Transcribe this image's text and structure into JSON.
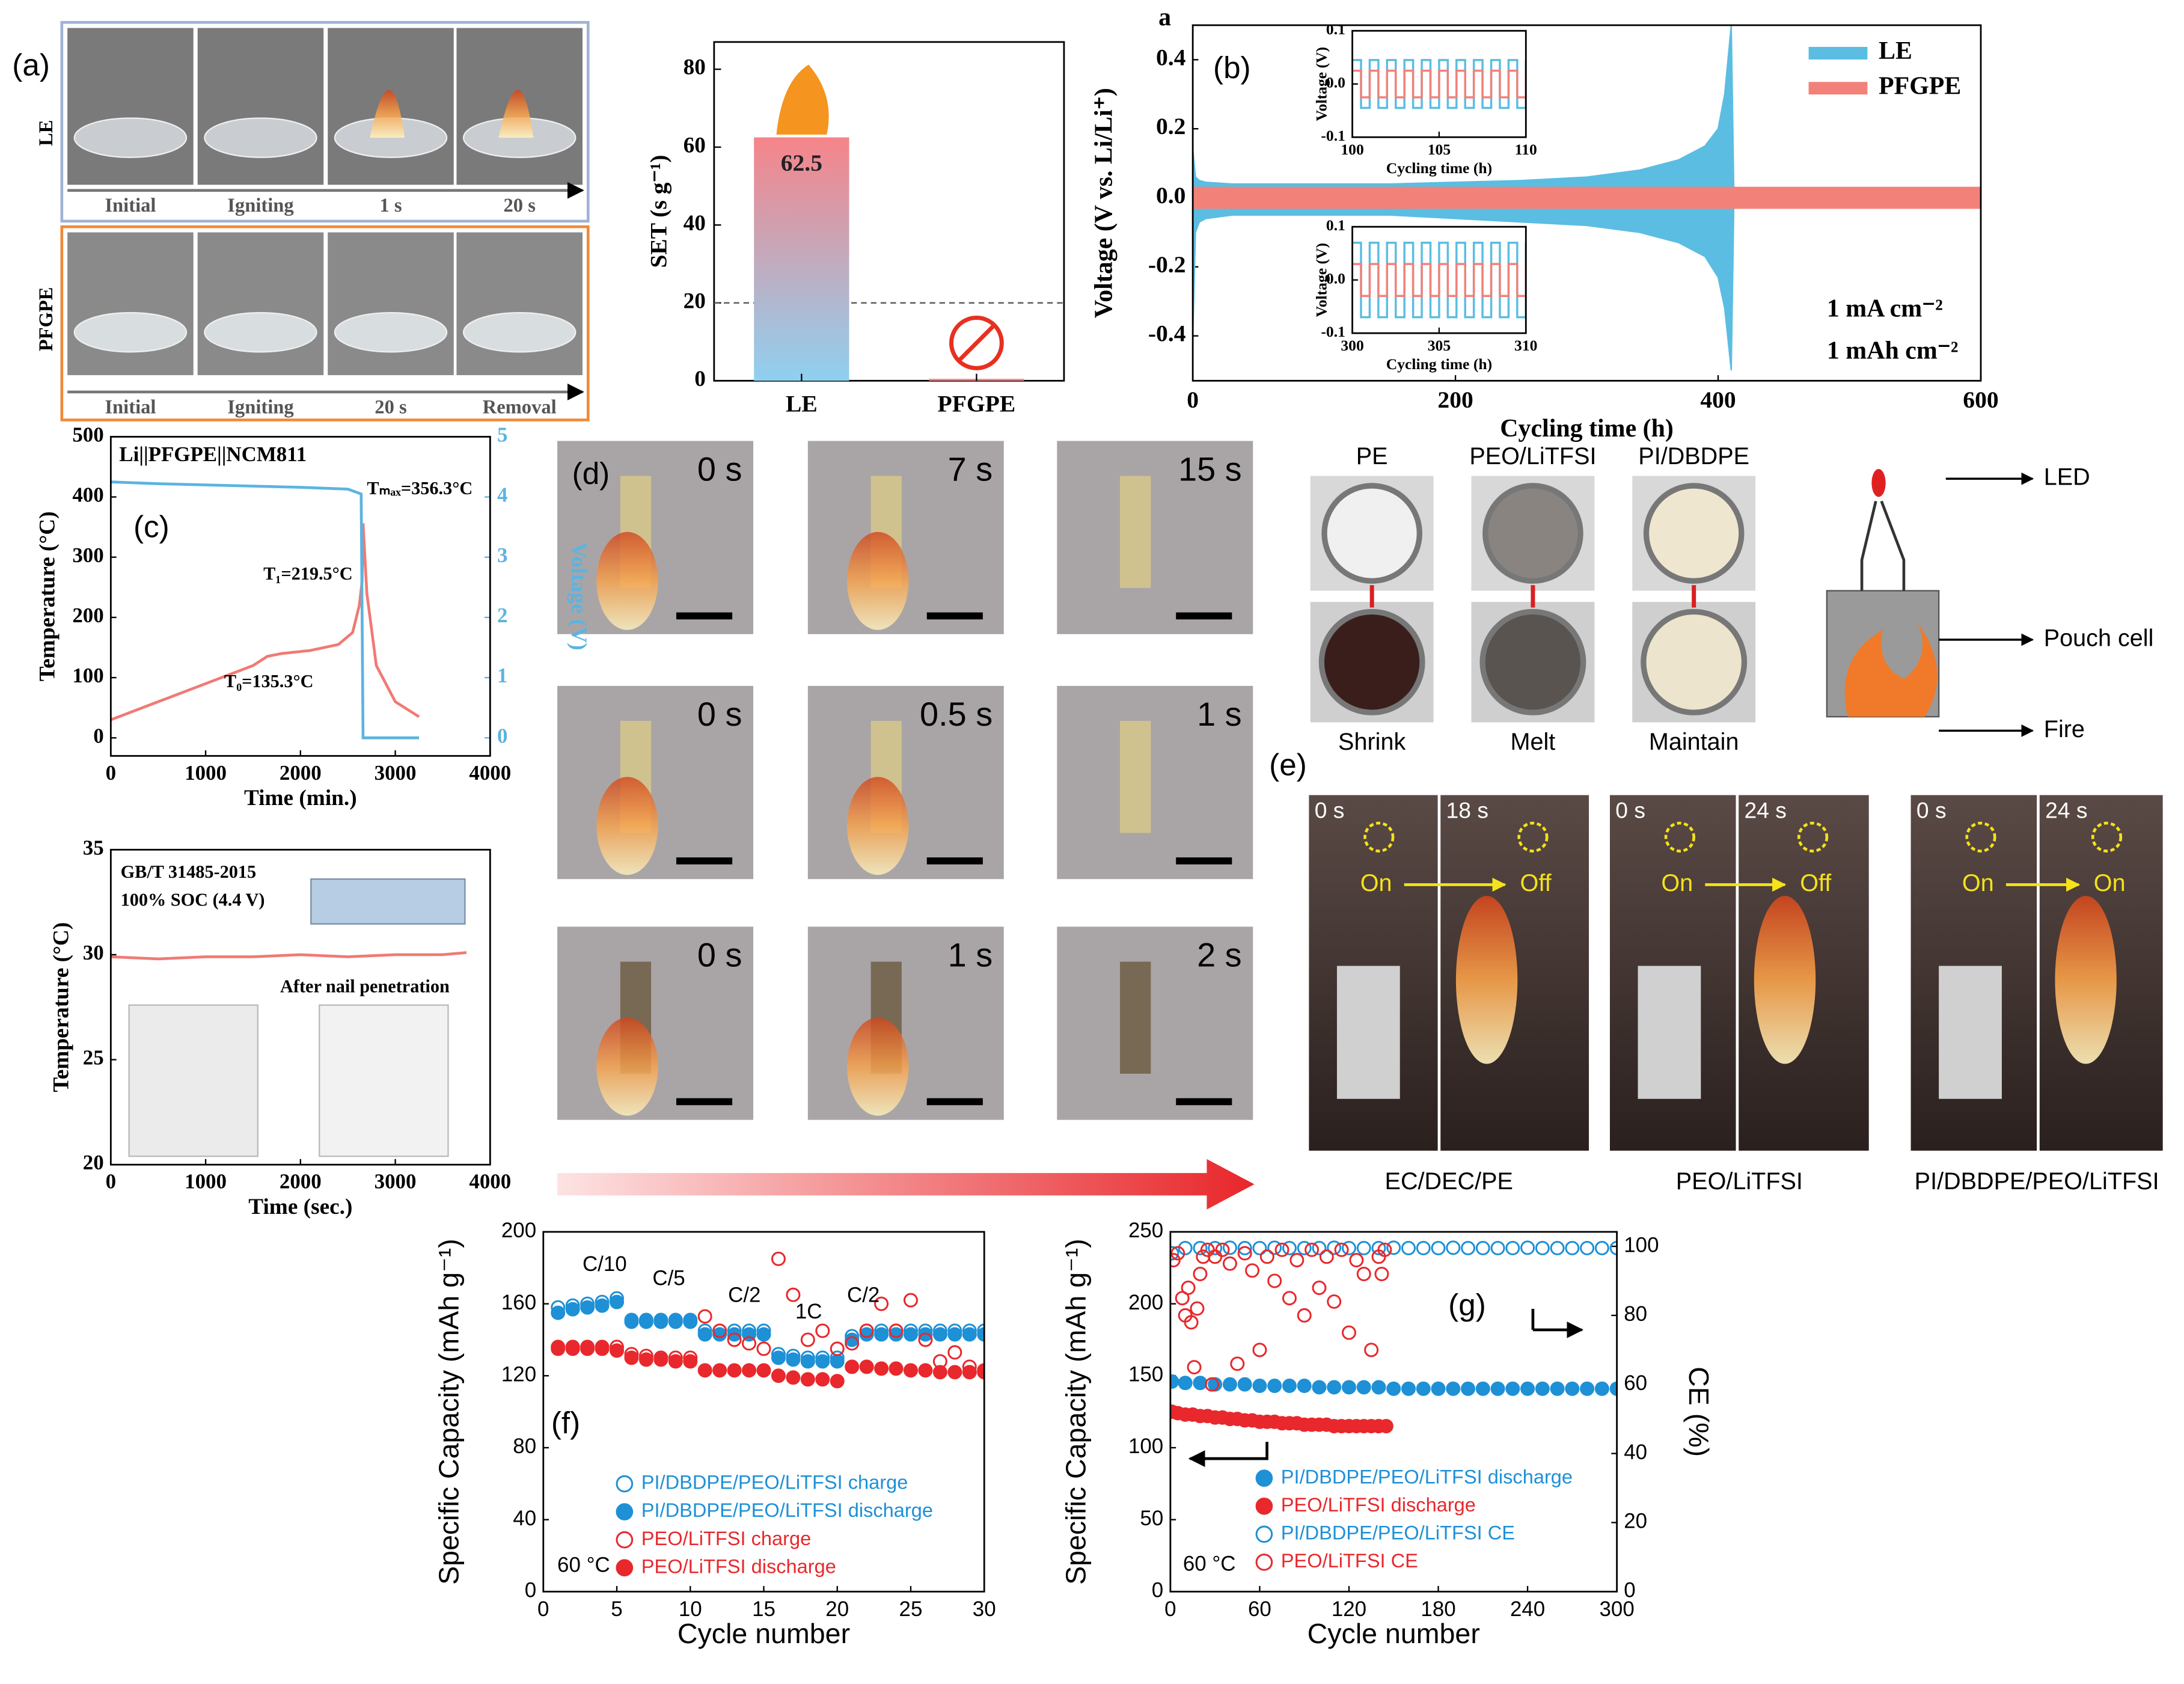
{
  "chart_data": [
    {
      "type": "bar",
      "ylabel": "SET (s g⁻¹)",
      "categories": [
        "LE",
        "PFGPE"
      ],
      "values": [
        62.5,
        0.5
      ],
      "threshold": 20,
      "ylim": [
        0,
        87
      ],
      "yticks": [
        0,
        20,
        40,
        60,
        80
      ]
    },
    {
      "type": "line",
      "corner_label": "a",
      "label": "(b)",
      "xlabel": "Cycling time (h)",
      "ylabel": "Voltage (V vs. Li/Li⁺)",
      "annotations": [
        "1 mA cm⁻²",
        "1 mAh cm⁻²"
      ],
      "legend": "upper right",
      "xlim": [
        0,
        600
      ],
      "xticks": [
        0,
        200,
        400,
        600
      ],
      "ylim": [
        -0.53,
        0.5
      ],
      "yticks": [
        -0.4,
        -0.2,
        {
          "value": 0,
          "label": "0.0"
        },
        0.2,
        0.4
      ],
      "series": [
        {
          "name": "LE",
          "color": "#5bbde2",
          "x": [
            0,
            2,
            5,
            10,
            30,
            60,
            100,
            150,
            200,
            250,
            300,
            340,
            370,
            390,
            400,
            405,
            410,
            412
          ],
          "values": [
            0.14,
            0.06,
            0.05,
            0.045,
            0.04,
            0.04,
            0.04,
            0.04,
            0.045,
            0.05,
            0.06,
            0.08,
            0.11,
            0.15,
            0.2,
            0.3,
            0.5,
            0
          ],
          "lower": [
            -0.4,
            -0.1,
            -0.07,
            -0.06,
            -0.05,
            -0.05,
            -0.05,
            -0.05,
            -0.06,
            -0.07,
            -0.08,
            -0.1,
            -0.13,
            -0.17,
            -0.23,
            -0.32,
            -0.5,
            0
          ]
        },
        {
          "name": "PFGPE",
          "color": "#f2817a",
          "x": [
            0,
            600
          ],
          "values": [
            0.03,
            0.03
          ],
          "lower": [
            -0.03,
            -0.03
          ]
        }
      ]
    },
    {
      "type": "line",
      "step": true,
      "xlabel": "Cycling time (h)",
      "ylabel": "Voltage (V)",
      "xlim": [
        100,
        110
      ],
      "xticks": [
        100,
        105,
        110
      ],
      "ylim": [
        -0.1,
        0.1
      ],
      "yticks": [
        -0.1,
        {
          "value": 0,
          "label": "0.0"
        },
        0.1
      ],
      "x": [
        100,
        100.5,
        101,
        101.5,
        102,
        102.5,
        103,
        103.5,
        104,
        104.5,
        105,
        105.5,
        106,
        106.5,
        107,
        107.5,
        108,
        108.5,
        109,
        109.5,
        110
      ],
      "series": [
        {
          "name": "LE",
          "color": "#5bbde2",
          "values": [
            0.045,
            -0.045,
            0.045,
            -0.045,
            0.045,
            -0.045,
            0.045,
            -0.045,
            0.045,
            -0.045,
            0.045,
            -0.045,
            0.045,
            -0.045,
            0.045,
            -0.045,
            0.045,
            -0.045,
            0.045,
            -0.045,
            0.045
          ]
        },
        {
          "name": "PFGPE",
          "color": "#f2817a",
          "values": [
            0.025,
            -0.025,
            0.025,
            -0.025,
            0.025,
            -0.025,
            0.025,
            -0.025,
            0.025,
            -0.025,
            0.025,
            -0.025,
            0.025,
            -0.025,
            0.025,
            -0.025,
            0.025,
            -0.025,
            0.025,
            -0.025,
            0.025
          ]
        }
      ]
    },
    {
      "type": "line",
      "step": true,
      "xlabel": "Cycling time (h)",
      "ylabel": "Voltage (V)",
      "xlim": [
        300,
        310
      ],
      "xticks": [
        300,
        305,
        310
      ],
      "ylim": [
        -0.1,
        0.1
      ],
      "yticks": [
        -0.1,
        {
          "value": 0,
          "label": "0.0"
        },
        0.1
      ],
      "x": [
        300,
        300.5,
        301,
        301.5,
        302,
        302.5,
        303,
        303.5,
        304,
        304.5,
        305,
        305.5,
        306,
        306.5,
        307,
        307.5,
        308,
        308.5,
        309,
        309.5,
        310
      ],
      "series": [
        {
          "name": "LE",
          "color": "#5bbde2",
          "values": [
            0.07,
            -0.07,
            0.07,
            -0.07,
            0.07,
            -0.07,
            0.07,
            -0.07,
            0.07,
            -0.07,
            0.07,
            -0.07,
            0.07,
            -0.07,
            0.07,
            -0.07,
            0.07,
            -0.07,
            0.07,
            -0.07,
            0.07
          ]
        },
        {
          "name": "PFGPE",
          "color": "#f2817a",
          "values": [
            0.03,
            -0.03,
            0.03,
            -0.03,
            0.03,
            -0.03,
            0.03,
            -0.03,
            0.03,
            -0.03,
            0.03,
            -0.03,
            0.03,
            -0.03,
            0.03,
            -0.03,
            0.03,
            -0.03,
            0.03,
            -0.03,
            0.03
          ]
        }
      ]
    },
    {
      "type": "line",
      "label": "(c)",
      "title": "Li||PFGPE||NCM811",
      "xlabel": "Time (min.)",
      "ylabel": "Temperature (°C)",
      "y2label": "Voltage (V)",
      "annotations": [
        "Tₘₐₓ=356.3°C",
        "T₁=219.5°C",
        "T₀=135.3°C"
      ],
      "xlim": [
        0,
        4000
      ],
      "xticks": [
        0,
        1000,
        2000,
        3000,
        4000
      ],
      "ylim": [
        -30,
        500
      ],
      "yticks": [
        0,
        100,
        200,
        300,
        400,
        500
      ],
      "y2lim": [
        -0.3,
        5
      ],
      "y2ticks": [
        0,
        1,
        2,
        3,
        4,
        5
      ],
      "series": [
        {
          "name": "Temperature",
          "color": "#f07a74",
          "x": [
            0,
            300,
            600,
            900,
            1200,
            1500,
            1650,
            1800,
            2100,
            2400,
            2550,
            2620,
            2650,
            2660,
            2700,
            2800,
            3000,
            3250
          ],
          "values": [
            30,
            48,
            66,
            84,
            102,
            120,
            135.3,
            140,
            145,
            155,
            175,
            219.5,
            260,
            356.3,
            240,
            120,
            60,
            35
          ]
        },
        {
          "name": "Voltage",
          "axis": "y2",
          "color": "#5bb4e0",
          "x": [
            0,
            500,
            1000,
            1500,
            2000,
            2500,
            2640,
            2660,
            3250
          ],
          "values": [
            4.25,
            4.22,
            4.2,
            4.18,
            4.16,
            4.13,
            4.05,
            0,
            0
          ]
        }
      ]
    },
    {
      "type": "line",
      "xlabel": "Time (sec.)",
      "ylabel": "Temperature (°C)",
      "annotations": [
        "GB/T 31485-2015",
        "100% SOC (4.4 V)",
        "After nail penetration"
      ],
      "xlim": [
        0,
        4000
      ],
      "xticks": [
        0,
        1000,
        2000,
        3000,
        4000
      ],
      "ylim": [
        20,
        35
      ],
      "yticks": [
        20,
        25,
        30,
        35
      ],
      "series": [
        {
          "name": "Temperature",
          "color": "#f07a74",
          "x": [
            0,
            500,
            1000,
            1500,
            2000,
            2500,
            3000,
            3500,
            3750
          ],
          "values": [
            29.9,
            29.8,
            29.9,
            29.9,
            30,
            29.9,
            30,
            30,
            30.1
          ]
        }
      ]
    },
    {
      "type": "scatter",
      "label": "(f)",
      "xlabel": "Cycle number",
      "ylabel": "Specific Capacity (mAh g⁻¹)",
      "annotations": [
        "C/10",
        "C/5",
        "C/2",
        "1C",
        "C/2",
        "60 °C"
      ],
      "xlim": [
        0,
        30
      ],
      "xticks": [
        0,
        5,
        10,
        15,
        20,
        25,
        30
      ],
      "ylim": [
        0,
        200
      ],
      "yticks": [
        0,
        40,
        80,
        120,
        160,
        200
      ],
      "x": [
        1,
        2,
        3,
        4,
        5,
        6,
        7,
        8,
        9,
        10,
        11,
        12,
        13,
        14,
        15,
        16,
        17,
        18,
        19,
        20,
        21,
        22,
        23,
        24,
        25,
        26,
        27,
        28,
        29,
        30
      ],
      "series": [
        {
          "name": "PI/DBDPE/PEO/LiTFSI charge",
          "color": "#1e90d6",
          "marker": "open",
          "values": [
            158,
            159,
            160,
            161,
            163,
            151,
            151,
            151,
            151,
            151,
            145,
            145,
            145,
            145,
            145,
            132,
            131,
            130,
            130,
            130,
            142,
            145,
            145,
            145,
            145,
            145,
            145,
            145,
            145,
            145
          ]
        },
        {
          "name": "PI/DBDPE/PEO/LiTFSI discharge",
          "color": "#1e90d6",
          "marker": "filled",
          "values": [
            155,
            157,
            158,
            159,
            161,
            150,
            150,
            150,
            150,
            150,
            143,
            143,
            143,
            143,
            143,
            130,
            129,
            128,
            128,
            128,
            140,
            143,
            143,
            143,
            143,
            143,
            143,
            143,
            143,
            143
          ]
        },
        {
          "name": "PEO/LiTFSI charge",
          "color": "#e8282c",
          "marker": "open",
          "values": [
            136,
            136,
            136,
            136,
            136,
            132,
            131,
            130,
            130,
            130,
            153,
            145,
            140,
            138,
            135,
            185,
            165,
            140,
            145,
            135,
            138,
            145,
            160,
            145,
            162,
            140,
            128,
            133,
            125,
            123
          ]
        },
        {
          "name": "PEO/LiTFSI discharge",
          "color": "#e8282c",
          "marker": "filled",
          "values": [
            135,
            135,
            135,
            135,
            134,
            130,
            129,
            129,
            128,
            128,
            123,
            123,
            123,
            123,
            123,
            120,
            119,
            118,
            118,
            117,
            125,
            125,
            124,
            124,
            123,
            123,
            122,
            122,
            122,
            122
          ]
        }
      ]
    },
    {
      "type": "scatter",
      "label": "(g)",
      "xlabel": "Cycle number",
      "ylabel": "Specific Capacity (mAh g⁻¹)",
      "y2label": "CE (%)",
      "annotations": [
        "60 °C"
      ],
      "xlim": [
        0,
        300
      ],
      "xticks": [
        0,
        60,
        120,
        180,
        240,
        300
      ],
      "ylim": [
        0,
        250
      ],
      "yticks": [
        0,
        50,
        100,
        150,
        200,
        250
      ],
      "y2lim": [
        0,
        104.2
      ],
      "y2ticks": [
        0,
        20,
        40,
        60,
        80,
        100
      ],
      "series": [
        {
          "name": "PI/DBDPE/PEO/LiTFSI discharge",
          "color": "#1e90d6",
          "marker": "filled",
          "x": [
            1,
            10,
            20,
            30,
            40,
            50,
            60,
            70,
            80,
            90,
            100,
            110,
            120,
            130,
            140,
            150,
            160,
            170,
            180,
            190,
            200,
            210,
            220,
            230,
            240,
            250,
            260,
            270,
            280,
            290,
            300
          ],
          "values": [
            146,
            145,
            145,
            144,
            144,
            144,
            143,
            143,
            143,
            143,
            142,
            142,
            142,
            142,
            142,
            141,
            141,
            141,
            141,
            141,
            141,
            141,
            141,
            141,
            141,
            141,
            141,
            141,
            141,
            141,
            141
          ]
        },
        {
          "name": "PEO/LiTFSI discharge",
          "color": "#e8282c",
          "marker": "filled",
          "x": [
            1,
            5,
            10,
            15,
            20,
            25,
            30,
            35,
            40,
            45,
            50,
            55,
            60,
            65,
            70,
            75,
            80,
            85,
            90,
            95,
            100,
            105,
            110,
            115,
            120,
            125,
            130,
            135,
            140,
            145
          ],
          "values": [
            125,
            124,
            123,
            123,
            122,
            122,
            121,
            121,
            120,
            120,
            119,
            119,
            118,
            118,
            118,
            117,
            117,
            117,
            116,
            116,
            116,
            116,
            115,
            115,
            115,
            115,
            115,
            115,
            115,
            115
          ]
        },
        {
          "name": "PI/DBDPE/PEO/LiTFSI CE",
          "color": "#1e90d6",
          "marker": "open",
          "axis": "y2",
          "x": [
            1,
            10,
            20,
            30,
            40,
            50,
            60,
            70,
            80,
            90,
            100,
            110,
            120,
            130,
            140,
            150,
            160,
            170,
            180,
            190,
            200,
            210,
            220,
            230,
            240,
            250,
            260,
            270,
            280,
            290,
            300
          ],
          "values": [
            98,
            99.5,
            99.5,
            99.5,
            99.6,
            99.5,
            99.5,
            99.6,
            99.5,
            99.5,
            99.5,
            99.6,
            99.5,
            99.5,
            99.5,
            99.6,
            99.5,
            99.5,
            99.5,
            99.6,
            99.5,
            99.5,
            99.5,
            99.5,
            99.6,
            99.5,
            99.5,
            99.5,
            99.5,
            99.5,
            99.5
          ]
        },
        {
          "name": "PEO/LiTFSI CE",
          "color": "#e8282c",
          "marker": "open",
          "axis": "y2",
          "x": [
            2,
            5,
            8,
            10,
            12,
            14,
            16,
            18,
            20,
            22,
            25,
            28,
            30,
            35,
            40,
            45,
            50,
            55,
            60,
            65,
            70,
            75,
            80,
            85,
            90,
            95,
            100,
            105,
            110,
            115,
            120,
            125,
            130,
            135,
            140,
            142,
            144
          ],
          "values": [
            96,
            98,
            85,
            80,
            88,
            78,
            65,
            82,
            92,
            97,
            99,
            60,
            97,
            99,
            95,
            66,
            98,
            93,
            70,
            97,
            90,
            99,
            85,
            96,
            80,
            99,
            88,
            97,
            84,
            99,
            75,
            96,
            92,
            70,
            97,
            92,
            99
          ]
        }
      ]
    }
  ],
  "panel_a": {
    "label": "(a)",
    "rows": [
      {
        "name": "LE",
        "frames": [
          "Initial",
          "Igniting",
          "1 s",
          "20 s"
        ]
      },
      {
        "name": "PFGPE",
        "frames": [
          "Initial",
          "Igniting",
          "20 s",
          "Removal"
        ]
      }
    ]
  },
  "panel_d": {
    "label": "(d)",
    "frames": [
      "0 s",
      "7 s",
      "15 s",
      "0 s",
      "0.5 s",
      "1 s",
      "0 s",
      "1 s",
      "2 s"
    ]
  },
  "separators": [
    {
      "name": "PE",
      "result": "Shrink"
    },
    {
      "name": "PEO/LiTFSI",
      "result": "Melt"
    },
    {
      "name": "PI/DBDPE",
      "result": "Maintain"
    }
  ],
  "diagram": {
    "labels": [
      "LED",
      "Pouch cell",
      "Fire"
    ]
  },
  "panel_e": {
    "label": "(e)",
    "groups": [
      {
        "caption": "EC/DEC/PE",
        "times": [
          "0 s",
          "18 s"
        ],
        "states": [
          "On",
          "Off"
        ]
      },
      {
        "caption": "PEO/LiTFSI",
        "times": [
          "0 s",
          "24 s"
        ],
        "states": [
          "On",
          "Off"
        ]
      },
      {
        "caption": "PI/DBDPE/PEO/LiTFSI",
        "times": [
          "0 s",
          "24 s"
        ],
        "states": [
          "On",
          "On"
        ]
      }
    ]
  }
}
